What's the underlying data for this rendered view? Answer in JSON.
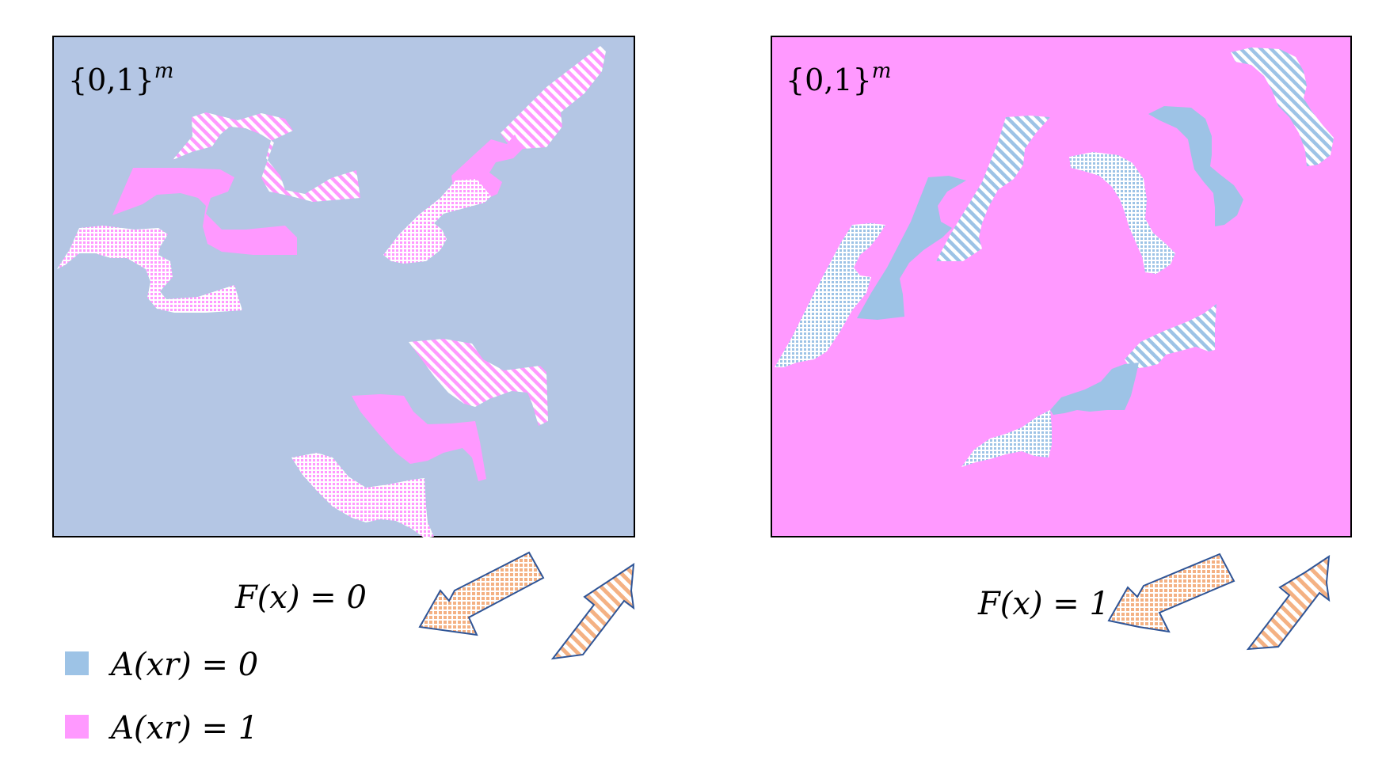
{
  "left_panel": {
    "space_label": "{0,1}",
    "space_exp": "m",
    "background_color": "#b4c6e4",
    "caption": "F(x) = 0"
  },
  "right_panel": {
    "space_label": "{0,1}",
    "space_exp": "m",
    "background_color": "#ff99ff",
    "caption": "F(x) = 1"
  },
  "legend": [
    {
      "label": "A(xr) = 0",
      "color": "#9dc3e6"
    },
    {
      "label": "A(xr) = 1",
      "color": "#ff99ff"
    }
  ],
  "colors": {
    "blob_on_blue": "#ff99ff",
    "blob_on_pink": "#9dc3e6",
    "arrow_fill": "#f4b183",
    "arrow_stroke": "#2f5597",
    "frame": "#000000"
  }
}
